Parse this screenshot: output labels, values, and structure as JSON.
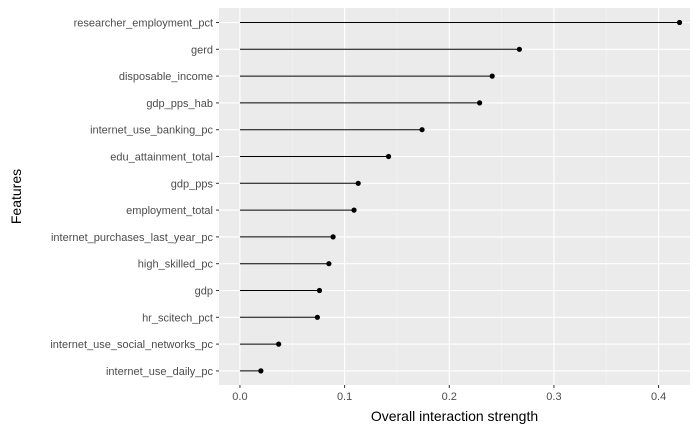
{
  "chart_data": {
    "type": "lollipop",
    "xlabel": "Overall interaction strength",
    "ylabel": "Features",
    "xlim": [
      -0.02,
      0.43
    ],
    "x_ticks": [
      0.0,
      0.1,
      0.2,
      0.3,
      0.4
    ],
    "x_tick_labels": [
      "0.0",
      "0.1",
      "0.2",
      "0.3",
      "0.4"
    ],
    "grid": true,
    "categories": [
      "researcher_employment_pct",
      "gerd",
      "disposable_income",
      "gdp_pps_hab",
      "internet_use_banking_pc",
      "edu_attainment_total",
      "gdp_pps",
      "employment_total",
      "internet_purchases_last_year_pc",
      "high_skilled_pc",
      "gdp",
      "hr_scitech_pct",
      "internet_use_social_networks_pc",
      "internet_use_daily_pc"
    ],
    "values": [
      0.42,
      0.267,
      0.241,
      0.229,
      0.174,
      0.142,
      0.113,
      0.109,
      0.089,
      0.085,
      0.076,
      0.074,
      0.037,
      0.02
    ],
    "colors": {
      "panel": "#ebebeb",
      "grid_major": "#ffffff",
      "grid_minor": "#f5f5f5",
      "mark": "#000000"
    }
  }
}
